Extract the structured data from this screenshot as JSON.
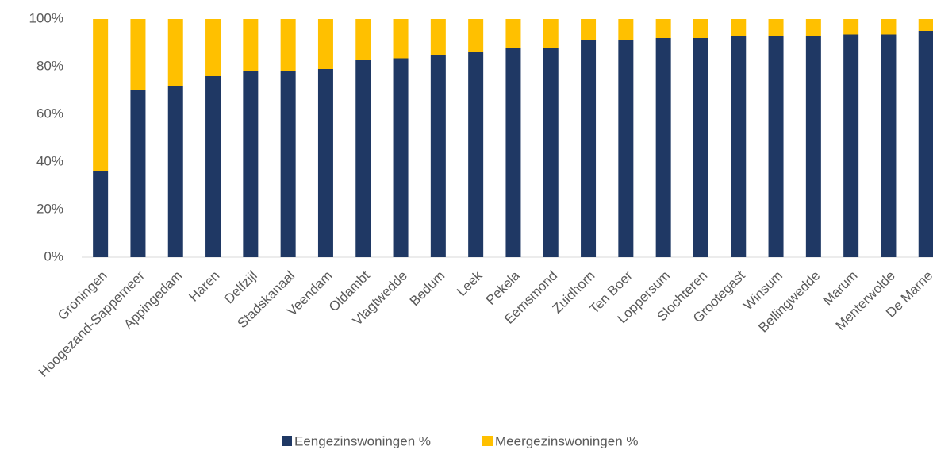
{
  "chart_data": {
    "type": "stacked_bar",
    "categories": [
      "Groningen",
      "Hoogezand-Sappemeer",
      "Appingedam",
      "Haren",
      "Delfzijl",
      "Stadskanaal",
      "Veendam",
      "Oldambt",
      "Vlagtwedde",
      "Bedum",
      "Leek",
      "Pekela",
      "Eemsmond",
      "Zuidhorn",
      "Ten Boer",
      "Loppersum",
      "Slochteren",
      "Grootegast",
      "Winsum",
      "Bellingwedde",
      "Marum",
      "Menterwolde",
      "De Marne"
    ],
    "series": [
      {
        "name": "Eengezinswoningen %",
        "color": "#1f3864",
        "values": [
          36,
          70,
          72,
          76,
          78,
          78,
          79,
          83,
          83.5,
          85,
          86,
          88,
          88,
          91,
          91,
          92,
          92,
          93,
          93,
          93,
          93.5,
          93.5,
          95
        ]
      },
      {
        "name": "Meergezinswoningen %",
        "color": "#ffc000",
        "values": [
          64,
          30,
          28,
          24,
          22,
          22,
          21,
          17,
          16.5,
          15,
          14,
          12,
          12,
          9,
          9,
          8,
          8,
          7,
          7,
          7,
          6.5,
          6.5,
          5
        ]
      }
    ],
    "ylim": [
      0,
      100
    ],
    "yticks": [
      {
        "value": 0,
        "label": "0%"
      },
      {
        "value": 20,
        "label": "20%"
      },
      {
        "value": 40,
        "label": "40%"
      },
      {
        "value": 60,
        "label": "60%"
      },
      {
        "value": 80,
        "label": "80%"
      },
      {
        "value": 100,
        "label": "100%"
      }
    ],
    "legend": "bottom"
  }
}
